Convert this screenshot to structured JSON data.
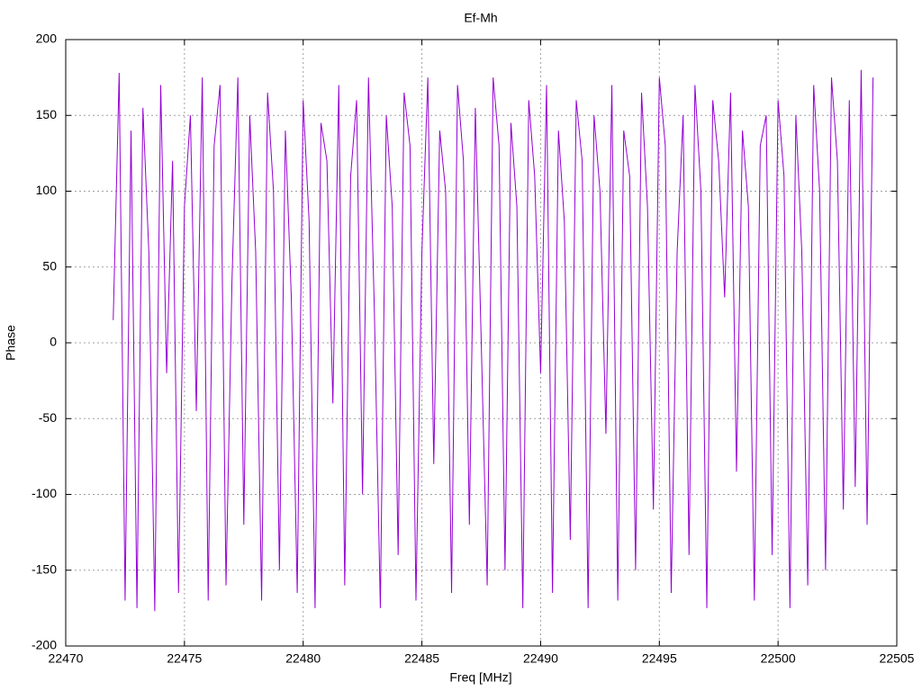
{
  "chart_data": {
    "type": "line",
    "title": "Ef-Mh",
    "x_label": "Freq [MHz]",
    "y_label": "Phase",
    "color": "#9400d3",
    "grid": true,
    "xlim": [
      22470,
      22505
    ],
    "xticks": [
      22470,
      22475,
      22480,
      22485,
      22490,
      22495,
      22500,
      22505
    ],
    "ylim": [
      -200,
      200
    ],
    "yticks": [
      -200,
      -150,
      -100,
      -50,
      0,
      50,
      100,
      150,
      200
    ],
    "x": [
      22472,
      22472.25,
      22472.5,
      22472.75,
      22473,
      22473.25,
      22473.5,
      22473.75,
      22474,
      22474.25,
      22474.5,
      22474.75,
      22475,
      22475.25,
      22475.5,
      22475.75,
      22476,
      22476.25,
      22476.5,
      22476.75,
      22477,
      22477.25,
      22477.5,
      22477.75,
      22478,
      22478.25,
      22478.5,
      22478.75,
      22479,
      22479.25,
      22479.5,
      22479.75,
      22480,
      22480.25,
      22480.5,
      22480.75,
      22481,
      22481.25,
      22481.5,
      22481.75,
      22482,
      22482.25,
      22482.5,
      22482.75,
      22483,
      22483.25,
      22483.5,
      22483.75,
      22484,
      22484.25,
      22484.5,
      22484.75,
      22485,
      22485.25,
      22485.5,
      22485.75,
      22486,
      22486.25,
      22486.5,
      22486.75,
      22487,
      22487.25,
      22487.5,
      22487.75,
      22488,
      22488.25,
      22488.5,
      22488.75,
      22489,
      22489.25,
      22489.5,
      22489.75,
      22490,
      22490.25,
      22490.5,
      22490.75,
      22491,
      22491.25,
      22491.5,
      22491.75,
      22492,
      22492.25,
      22492.5,
      22492.75,
      22493,
      22493.25,
      22493.5,
      22493.75,
      22494,
      22494.25,
      22494.5,
      22494.75,
      22495,
      22495.25,
      22495.5,
      22495.75,
      22496,
      22496.25,
      22496.5,
      22496.75,
      22497,
      22497.25,
      22497.5,
      22497.75,
      22498,
      22498.25,
      22498.5,
      22498.75,
      22499,
      22499.25,
      22499.5,
      22499.75,
      22500,
      22500.25,
      22500.5,
      22500.75,
      22501,
      22501.25,
      22501.5,
      22501.75,
      22502,
      22502.25,
      22502.5,
      22502.75,
      22503,
      22503.25,
      22503.5,
      22503.75,
      22504
    ],
    "values": [
      15,
      178,
      -170,
      140,
      -175,
      155,
      60,
      -177,
      170,
      -20,
      120,
      -165,
      90,
      150,
      -45,
      175,
      -170,
      130,
      170,
      -160,
      40,
      175,
      -120,
      150,
      60,
      -170,
      165,
      100,
      -150,
      140,
      30,
      -165,
      160,
      80,
      -175,
      145,
      120,
      -40,
      170,
      -160,
      110,
      160,
      -100,
      175,
      20,
      -175,
      150,
      90,
      -140,
      165,
      130,
      -170,
      60,
      175,
      -80,
      140,
      100,
      -165,
      170,
      120,
      -120,
      155,
      0,
      -160,
      175,
      130,
      -150,
      145,
      90,
      -175,
      160,
      110,
      -20,
      170,
      -165,
      140,
      80,
      -130,
      160,
      120,
      -175,
      150,
      100,
      -60,
      170,
      -170,
      140,
      110,
      -150,
      165,
      90,
      -110,
      175,
      130,
      -165,
      60,
      150,
      -140,
      170,
      100,
      -175,
      160,
      120,
      30,
      165,
      -85,
      140,
      90,
      -170,
      130,
      150,
      -140,
      160,
      110,
      -175,
      150,
      60,
      -160,
      170,
      100,
      -150,
      175,
      120,
      -110,
      160,
      -95,
      180,
      -120,
      175
    ]
  }
}
